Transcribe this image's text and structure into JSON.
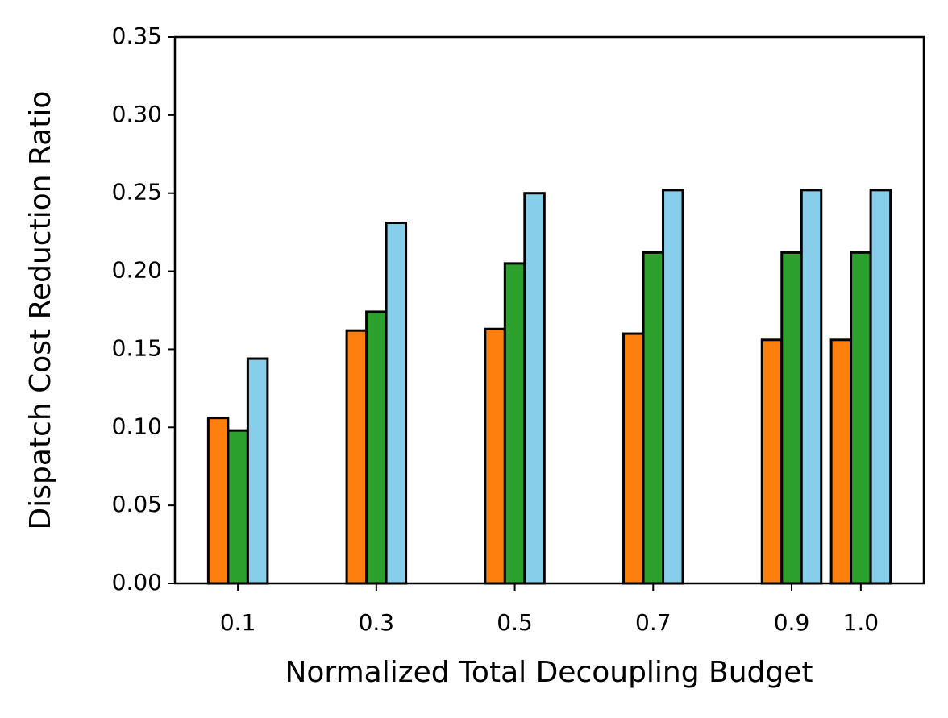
{
  "chart_data": {
    "type": "bar",
    "x_label": "Normalized Total Decoupling Budget",
    "y_label": "Dispatch Cost Reduction Ratio",
    "x": [
      0.1,
      0.3,
      0.5,
      0.7,
      0.9,
      1.0
    ],
    "series": [
      {
        "color": "#ff7f0e",
        "values": [
          0.106,
          0.162,
          0.163,
          0.16,
          0.156,
          0.156
        ]
      },
      {
        "color": "#2ca02c",
        "values": [
          0.098,
          0.174,
          0.205,
          0.212,
          0.212,
          0.212
        ]
      },
      {
        "color": "#87ceeb",
        "values": [
          0.144,
          0.231,
          0.25,
          0.252,
          0.252,
          0.252
        ]
      }
    ],
    "xlim": [
      0.009,
      1.091
    ],
    "xticks": [
      0.1,
      0.3,
      0.5,
      0.7,
      0.9,
      {
        "value": 1.0,
        "label": "1.0"
      }
    ],
    "ylim": [
      0,
      0.35
    ],
    "yticks": [
      {
        "value": 0,
        "label": "0.00"
      },
      {
        "value": 0.05,
        "label": "0.05"
      },
      {
        "value": 0.1,
        "label": "0.10"
      },
      {
        "value": 0.15,
        "label": "0.15"
      },
      {
        "value": 0.2,
        "label": "0.20"
      },
      {
        "value": 0.25,
        "label": "0.25"
      },
      {
        "value": 0.3,
        "label": "0.30"
      },
      {
        "value": 0.35,
        "label": "0.35"
      }
    ],
    "grid": false,
    "edge_color": "#000000"
  }
}
